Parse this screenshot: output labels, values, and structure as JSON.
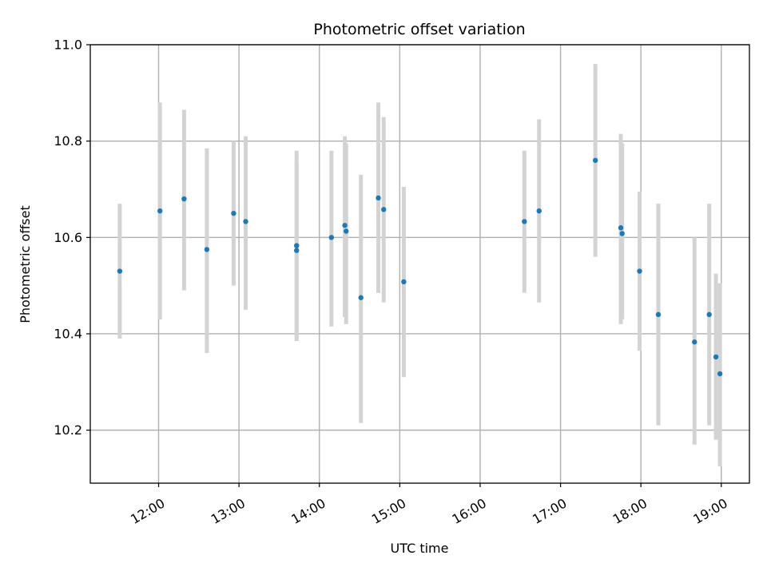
{
  "chart_data": {
    "type": "scatter",
    "title": "Photometric offset variation",
    "xlabel": "UTC time",
    "ylabel": "Photometric offset",
    "grid": true,
    "xlim": [
      "11:09",
      "19:21"
    ],
    "ylim": [
      10.09,
      11.0
    ],
    "xticks": [
      "12:00",
      "13:00",
      "14:00",
      "15:00",
      "16:00",
      "17:00",
      "18:00",
      "19:00"
    ],
    "yticks": [
      "10.2",
      "10.4",
      "10.6",
      "10.8",
      "11.0"
    ],
    "colors": {
      "point": "#1f77b4",
      "errorbar": "#d3d3d3"
    },
    "points": [
      {
        "x": "11:31",
        "y": 10.53,
        "err_low": 10.39,
        "err_high": 10.67
      },
      {
        "x": "12:01",
        "y": 10.655,
        "err_low": 10.43,
        "err_high": 10.88
      },
      {
        "x": "12:19",
        "y": 10.68,
        "err_low": 10.49,
        "err_high": 10.865
      },
      {
        "x": "12:36",
        "y": 10.575,
        "err_low": 10.36,
        "err_high": 10.785
      },
      {
        "x": "12:56",
        "y": 10.65,
        "err_low": 10.5,
        "err_high": 10.8
      },
      {
        "x": "13:05",
        "y": 10.633,
        "err_low": 10.45,
        "err_high": 10.81
      },
      {
        "x": "13:43",
        "y": 10.583,
        "err_low": 10.385,
        "err_high": 10.78
      },
      {
        "x": "13:43",
        "y": 10.573,
        "err_low": 10.39,
        "err_high": 10.755
      },
      {
        "x": "14:09",
        "y": 10.6,
        "err_low": 10.415,
        "err_high": 10.78
      },
      {
        "x": "14:19",
        "y": 10.625,
        "err_low": 10.435,
        "err_high": 10.81
      },
      {
        "x": "14:20",
        "y": 10.613,
        "err_low": 10.42,
        "err_high": 10.795
      },
      {
        "x": "14:31",
        "y": 10.475,
        "err_low": 10.215,
        "err_high": 10.73
      },
      {
        "x": "14:44",
        "y": 10.682,
        "err_low": 10.485,
        "err_high": 10.88
      },
      {
        "x": "14:48",
        "y": 10.658,
        "err_low": 10.465,
        "err_high": 10.85
      },
      {
        "x": "15:03",
        "y": 10.508,
        "err_low": 10.31,
        "err_high": 10.705
      },
      {
        "x": "16:33",
        "y": 10.633,
        "err_low": 10.485,
        "err_high": 10.78
      },
      {
        "x": "16:44",
        "y": 10.655,
        "err_low": 10.465,
        "err_high": 10.845
      },
      {
        "x": "17:26",
        "y": 10.76,
        "err_low": 10.56,
        "err_high": 10.96
      },
      {
        "x": "17:45",
        "y": 10.62,
        "err_low": 10.42,
        "err_high": 10.815
      },
      {
        "x": "17:46",
        "y": 10.608,
        "err_low": 10.43,
        "err_high": 10.795
      },
      {
        "x": "17:59",
        "y": 10.53,
        "err_low": 10.365,
        "err_high": 10.695
      },
      {
        "x": "18:13",
        "y": 10.44,
        "err_low": 10.21,
        "err_high": 10.67
      },
      {
        "x": "18:40",
        "y": 10.383,
        "err_low": 10.17,
        "err_high": 10.6
      },
      {
        "x": "18:51",
        "y": 10.44,
        "err_low": 10.21,
        "err_high": 10.67
      },
      {
        "x": "18:56",
        "y": 10.352,
        "err_low": 10.18,
        "err_high": 10.525
      },
      {
        "x": "18:59",
        "y": 10.317,
        "err_low": 10.125,
        "err_high": 10.505
      }
    ]
  }
}
